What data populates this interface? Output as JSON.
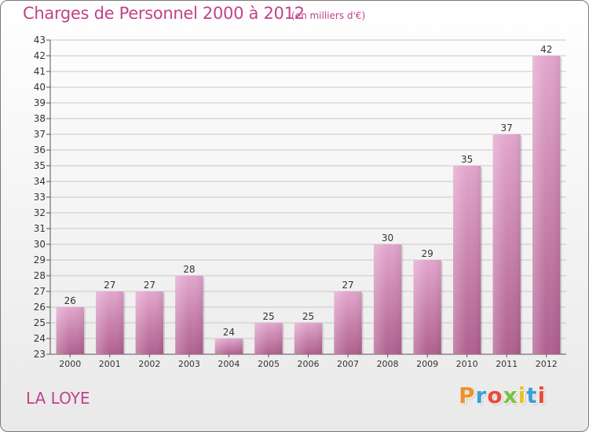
{
  "header": {
    "title": "Charges de Personnel 2000 à 2012",
    "subtitle": "(en milliers d'€)"
  },
  "footer": {
    "commune": "LA LOYE",
    "logo_letters": [
      "P",
      "r",
      "o",
      "x",
      "i",
      "t",
      "i"
    ],
    "logo_colors": [
      "#f0902a",
      "#3aa0d8",
      "#e84c3c",
      "#7cc142",
      "#f0c020",
      "#3aa0d8",
      "#e84c3c"
    ]
  },
  "colors": {
    "bar_top": "#e3a6cd",
    "bar_bottom": "#b0608f",
    "accent": "#c2428a",
    "grid": "#c8c8c8",
    "axis_text": "#333333"
  },
  "chart_data": {
    "type": "bar",
    "categories": [
      "2000",
      "2001",
      "2002",
      "2003",
      "2004",
      "2005",
      "2006",
      "2007",
      "2008",
      "2009",
      "2010",
      "2011",
      "2012"
    ],
    "values": [
      26,
      27,
      27,
      28,
      24,
      25,
      25,
      27,
      30,
      29,
      35,
      37,
      42
    ],
    "data_labels": [
      "26",
      "27",
      "27",
      "28",
      "24",
      "25",
      "25",
      "27",
      "30",
      "29",
      "35",
      "37",
      "42"
    ],
    "title": "Charges de Personnel 2000 à 2012",
    "subtitle": "(en milliers d'€)",
    "xlabel": "",
    "ylabel": "",
    "ylim": [
      23,
      43
    ],
    "yticks": [
      23,
      24,
      25,
      26,
      27,
      28,
      29,
      30,
      31,
      32,
      33,
      34,
      35,
      36,
      37,
      38,
      39,
      40,
      41,
      42,
      43
    ],
    "grid": true,
    "legend": "none"
  }
}
